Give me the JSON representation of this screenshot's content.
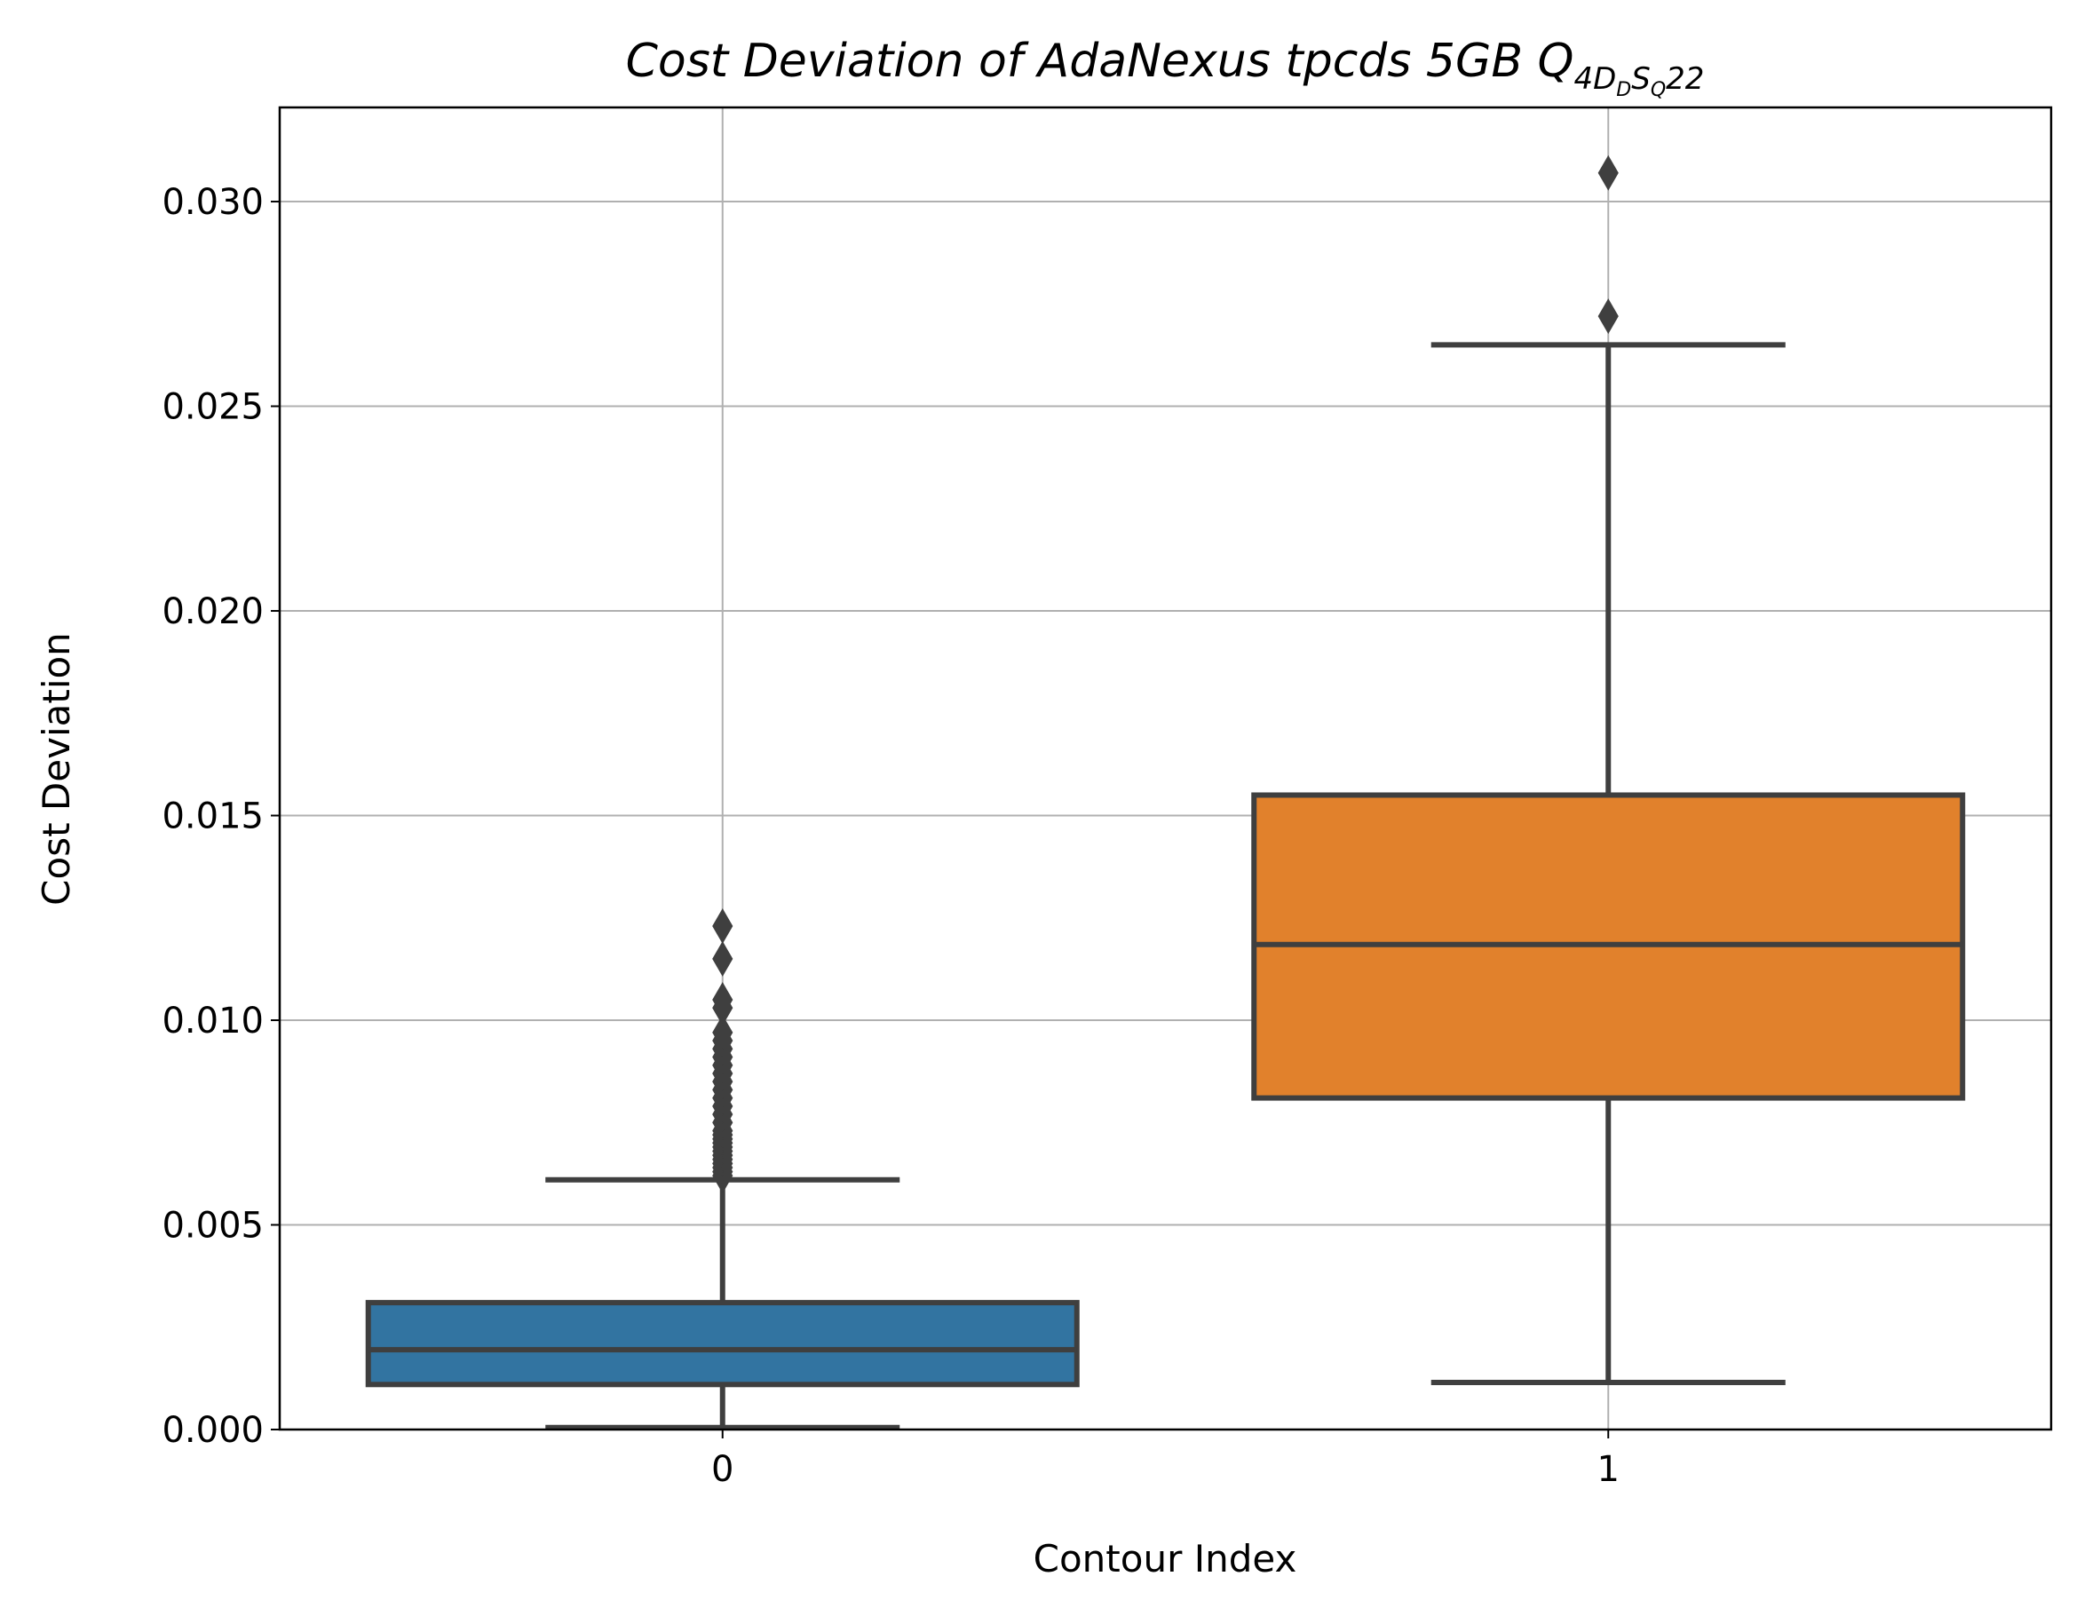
{
  "chart_data": {
    "type": "box",
    "title": {
      "main": "Cost Deviation of AdaNexus tpcds  5GB  Q",
      "subscript_4D": "4D",
      "subscript_D": "D",
      "subscript_S": "S",
      "subscript_Q": "Q",
      "suffix": "22"
    },
    "xlabel": "Contour Index",
    "ylabel": "Cost Deviation",
    "ylim": [
      0.0,
      0.0323
    ],
    "yticks": [
      0.0,
      0.005,
      0.01,
      0.015,
      0.02,
      0.025,
      0.03
    ],
    "ytick_labels": [
      "0.000",
      "0.005",
      "0.010",
      "0.015",
      "0.020",
      "0.025",
      "0.030"
    ],
    "grid": true,
    "categories": [
      "0",
      "1"
    ],
    "boxes": [
      {
        "category": "0",
        "color": "#3274a1",
        "whisker_low": 5e-05,
        "q1": 0.0011,
        "median": 0.00195,
        "q3": 0.0031,
        "whisker_high": 0.0061,
        "outliers": [
          0.0062,
          0.0063,
          0.0064,
          0.0065,
          0.0066,
          0.0067,
          0.0068,
          0.0069,
          0.007,
          0.0071,
          0.0072,
          0.0073,
          0.0075,
          0.0077,
          0.0079,
          0.0081,
          0.0083,
          0.0085,
          0.0087,
          0.0089,
          0.0091,
          0.0093,
          0.0095,
          0.0097,
          0.0103,
          0.0105,
          0.0115,
          0.0123
        ]
      },
      {
        "category": "1",
        "color": "#e1812c",
        "whisker_low": 0.00115,
        "q1": 0.0081,
        "median": 0.01185,
        "q3": 0.0155,
        "whisker_high": 0.0265,
        "outliers": [
          0.0272,
          0.0307
        ]
      }
    ]
  }
}
